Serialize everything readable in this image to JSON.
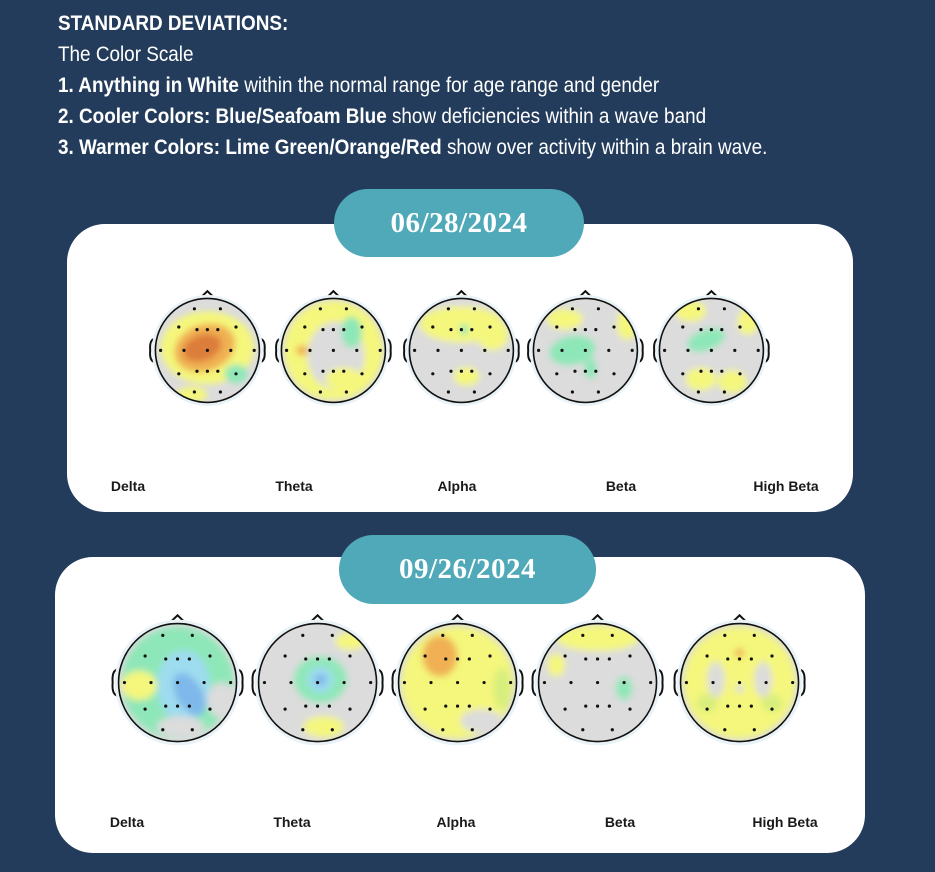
{
  "header": {
    "title": "STANDARD DEVIATIONS:",
    "subtitle": "The Color Scale",
    "line1_bold": "1. Anything in White",
    "line1_rest": " within the normal range for age range and gender",
    "line2_bold": "2. Cooler Colors: Blue/Seafoam Blue",
    "line2_rest": " show deficiencies within a wave band",
    "line3_bold": "3. Warmer Colors: Lime Green/Orange/Red",
    "line3_rest": " show over activity within a brain wave."
  },
  "colors": {
    "background": "#233c5b",
    "panel": "#ffffff",
    "pill": "#4fa9b8",
    "normal": "#dcdcdc",
    "yellow": "#f4f77c",
    "lime": "#d8ee7c",
    "orange": "#f0b052",
    "dark_orange": "#dd7d3a",
    "red": "#cf4a3a",
    "seafoam": "#8ee7b8",
    "light_blue": "#9edcef",
    "blue": "#7fb8ea"
  },
  "chart_data": [
    {
      "type": "heatmap",
      "title": "06/28/2024",
      "bands": [
        "Delta",
        "Theta",
        "Alpha",
        "Beta",
        "High Beta"
      ]
    },
    {
      "type": "heatmap",
      "title": "09/26/2024",
      "bands": [
        "Delta",
        "Theta",
        "Alpha",
        "Beta",
        "High Beta"
      ]
    }
  ]
}
